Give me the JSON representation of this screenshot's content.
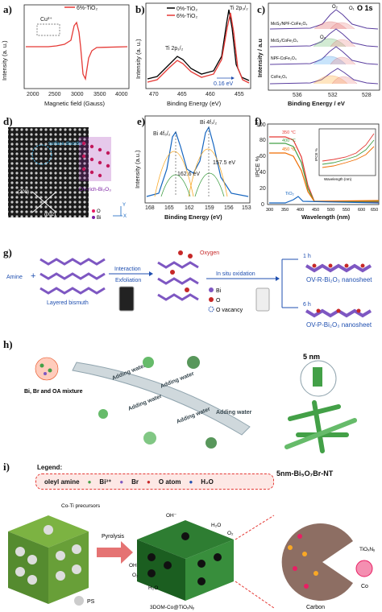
{
  "panels": {
    "a": {
      "label": "a)",
      "legend": "6%-TiO₂",
      "annot": "Cu²⁺",
      "ylabel": "Intensity (a. u.)",
      "xlabel": "Magnetic field (Gauss)",
      "xticks": [
        "2000",
        "2500",
        "3000",
        "3500",
        "4000"
      ]
    },
    "b": {
      "label": "b)",
      "legend1": "0%-TiO₂",
      "legend2": "6%-TiO₂",
      "peak1": "Ti 2p₃/₂",
      "peak2": "Ti 2p₁/₂",
      "shift": "0.16 eV",
      "ylabel": "Intensity (a. u.)",
      "xlabel": "Binding Energy (eV)",
      "xticks": [
        "470",
        "465",
        "460",
        "455"
      ]
    },
    "c": {
      "label": "c)",
      "title": "O 1s",
      "ylabel": "Intensity / a.u",
      "xlabel": "Binding Energy / eV",
      "xticks": [
        "536",
        "532",
        "528"
      ],
      "samples": [
        "MoS₂/NPF-CoFe₂O₄",
        "MoS₂/CoFe₂O₄",
        "NPF-CoFe₂O₄",
        "CoFe₂O₄"
      ],
      "o1": "O₁",
      "o2": "O₂",
      "o3": "O₃"
    },
    "d": {
      "label": "d)",
      "disorder": "surface disorder",
      "ov": "OV-rich-Bi₂O₃",
      "plane1": "(200)",
      "plane2": "(002)",
      "o": "O",
      "bi": "Bi",
      "x": "X",
      "y": "Y"
    },
    "e": {
      "label": "e)",
      "peak1": "Bi 4f₅/₂",
      "peak2": "Bi 4f₇/₂",
      "v1": "162.6 eV",
      "v2": "157.5 eV",
      "ylabel": "Intensity (a.u.)",
      "xlabel": "Binding Energy (eV)",
      "xticks": [
        "168",
        "165",
        "162",
        "159",
        "156",
        "153"
      ]
    },
    "f": {
      "label": "f)",
      "ylabel": "IPCE %",
      "xlabel": "Wavelength (nm)",
      "xticks": [
        "300",
        "350",
        "400",
        "450",
        "500",
        "550",
        "600",
        "650"
      ],
      "yticks": [
        "0",
        "20",
        "40",
        "60",
        "80",
        "100"
      ],
      "t1": "350 °C",
      "t2": "400 °C",
      "t3": "450 °C",
      "tio2": "TiO₂",
      "inset_ylabel": "IPCE %",
      "inset_xlabel": "Wavelength (nm)"
    },
    "g": {
      "label": "g)",
      "amine": "Amine",
      "layered": "Layered bismuth",
      "interaction": "Interaction",
      "exfoliation": "Exfoliation",
      "oxygen": "Oxygen",
      "insitu": "In situ oxidation",
      "bi": "Bi",
      "o": "O",
      "ovac": "O vacancy",
      "t1": "1 h",
      "t2": "6 h",
      "ns1": "OV-R-Bi₂O₃ nanosheet",
      "ns2": "OV-P-Bi₂O₃ nanosheet"
    },
    "h": {
      "label": "h)",
      "mix": "Bi, Br and OA mixture",
      "water": "Adding water",
      "nm": "5 nm",
      "product": "5nm-Bi₅O₇Br-NT"
    },
    "i": {
      "label": "i)",
      "legend_title": "Legend:",
      "leg_oleyl": "oleyl amine",
      "leg_bi": "Bi³⁺",
      "leg_br": "Br",
      "leg_o": "O atom",
      "leg_h2o": "H₂O",
      "precursor": "Co-Ti precursors",
      "pyrolysis": "Pyrolysis",
      "ps": "PS",
      "product": "3DOM-Co@TiOₓNᵧ",
      "oh": "OH",
      "oh_minus": "OH⁻",
      "h2o": "H₂O",
      "o2": "O₂",
      "carbon": "Carbon",
      "tion": "TiOₓNᵧ",
      "co": "Co"
    }
  }
}
